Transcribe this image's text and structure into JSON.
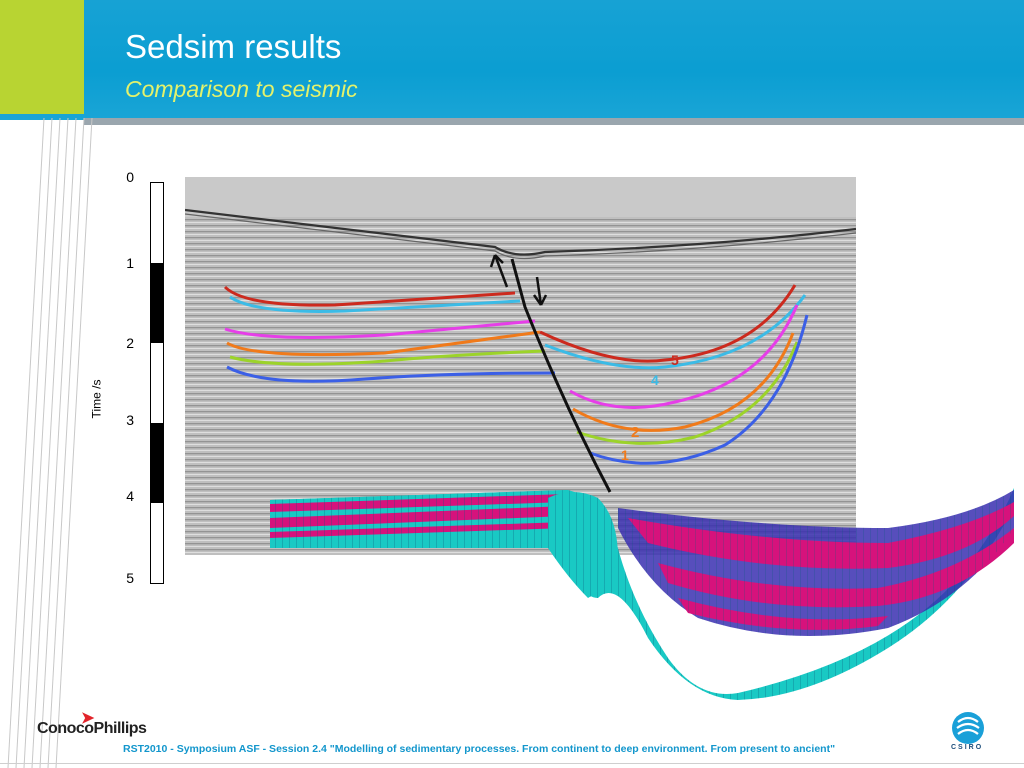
{
  "header": {
    "title": "Sedsim results",
    "subtitle": "Comparison to seismic"
  },
  "colors": {
    "header_blue": "#1ba3d3",
    "lime_accent": "#b8d432",
    "subtitle_yellow": "#e4f26b",
    "footer_text_blue": "#1296cc",
    "horizon_colors": [
      "#cc2a1e",
      "#3bbbe6",
      "#e63ee8",
      "#f07a1a",
      "#9cd32a",
      "#3b5fe6"
    ],
    "model_cyan": "#19c9c4",
    "model_magenta": "#d6127c"
  },
  "time_axis": {
    "label": "Time /s",
    "ticks": [
      "0",
      "1",
      "2",
      "3",
      "4",
      "5"
    ]
  },
  "seismic": {
    "horizon_labels": [
      "5",
      "4",
      "2",
      "1"
    ]
  },
  "footer": {
    "left_logo": "ConocoPhillips",
    "citation": "RST2010 - Symposium ASF - Session 2.4 \"Modelling of sedimentary processes. From continent to deep environment. From present to ancient\"",
    "right_logo": "CSIRO"
  },
  "icons": [
    "conocophillips-logo-icon",
    "csiro-logo-icon"
  ]
}
